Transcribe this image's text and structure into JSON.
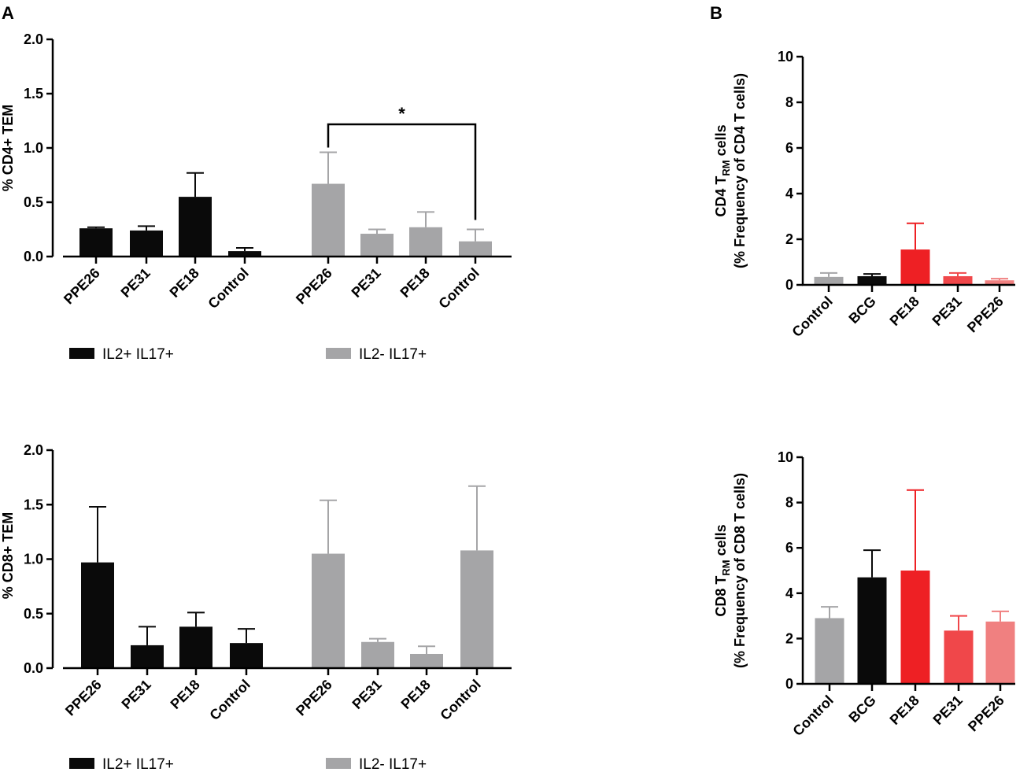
{
  "panels": {
    "a_label": "A",
    "b_label": "B"
  },
  "chart_data": [
    {
      "id": "cd4-tem",
      "type": "bar",
      "title": "",
      "xlabel": "",
      "ylabel": "% CD4+ TEM",
      "ylim": [
        0,
        2.0
      ],
      "yticks": [
        "0.0",
        "0.5",
        "1.0",
        "1.5",
        "2.0"
      ],
      "series": [
        {
          "name": "IL2+ IL17+",
          "color": "#0a0a0a",
          "categories": [
            "PPE26",
            "PE31",
            "PE18",
            "Control"
          ],
          "values": [
            0.26,
            0.24,
            0.55,
            0.05
          ],
          "errors": [
            0.01,
            0.04,
            0.22,
            0.03
          ]
        },
        {
          "name": "IL2- IL17+",
          "color": "#a5a5a7",
          "categories": [
            "PPE26",
            "PE31",
            "PE18",
            "Control"
          ],
          "values": [
            0.67,
            0.21,
            0.27,
            0.14
          ],
          "errors": [
            0.29,
            0.04,
            0.14,
            0.11
          ]
        }
      ],
      "significance": {
        "label": "*",
        "between": [
          "IL2- IL17+ PPE26",
          "IL2- IL17+ Control"
        ]
      },
      "legend": [
        {
          "label": "IL2+ IL17+",
          "color": "#0a0a0a"
        },
        {
          "label": "IL2- IL17+",
          "color": "#a5a5a7"
        }
      ]
    },
    {
      "id": "cd8-tem",
      "type": "bar",
      "title": "",
      "xlabel": "",
      "ylabel": "% CD8+ TEM",
      "ylim": [
        0,
        2.0
      ],
      "yticks": [
        "0.0",
        "0.5",
        "1.0",
        "1.5",
        "2.0"
      ],
      "series": [
        {
          "name": "IL2+ IL17+",
          "color": "#0a0a0a",
          "categories": [
            "PPE26",
            "PE31",
            "PE18",
            "Control"
          ],
          "values": [
            0.97,
            0.21,
            0.38,
            0.23
          ],
          "errors": [
            0.51,
            0.17,
            0.13,
            0.13
          ]
        },
        {
          "name": "IL2- IL17+",
          "color": "#a5a5a7",
          "categories": [
            "PPE26",
            "PE31",
            "PE18",
            "Control"
          ],
          "values": [
            1.05,
            0.24,
            0.13,
            1.08
          ],
          "errors": [
            0.49,
            0.03,
            0.07,
            0.59
          ]
        }
      ],
      "legend": [
        {
          "label": "IL2+ IL17+",
          "color": "#0a0a0a"
        },
        {
          "label": "IL2- IL17+",
          "color": "#a5a5a7"
        }
      ]
    },
    {
      "id": "cd4-trm",
      "type": "bar",
      "title": "",
      "xlabel": "",
      "ylabel_line1": "CD4 T",
      "ylabel_sub": "RM",
      "ylabel_line1_end": " cells",
      "ylabel_line2": "(% Frequency of CD4 T cells)",
      "ylim": [
        0,
        10
      ],
      "yticks": [
        "0",
        "2",
        "4",
        "6",
        "8",
        "10"
      ],
      "categories": [
        "Control",
        "BCG",
        "PE18",
        "PE31",
        "PPE26"
      ],
      "values": [
        0.35,
        0.38,
        1.55,
        0.38,
        0.2
      ],
      "errors": [
        0.17,
        0.1,
        1.15,
        0.14,
        0.07
      ],
      "colors": [
        "#a5a5a7",
        "#0a0a0a",
        "#ee2024",
        "#f0474a",
        "#f08080"
      ]
    },
    {
      "id": "cd8-trm",
      "type": "bar",
      "title": "",
      "xlabel": "",
      "ylabel_line1": "CD8 T",
      "ylabel_sub": "RM",
      "ylabel_line1_end": " cells",
      "ylabel_line2": "(% Frequency of CD8 T cells)",
      "ylim": [
        0,
        10
      ],
      "yticks": [
        "0",
        "2",
        "4",
        "6",
        "8",
        "10"
      ],
      "categories": [
        "Control",
        "BCG",
        "PE18",
        "PE31",
        "PPE26"
      ],
      "values": [
        2.9,
        4.7,
        5.0,
        2.35,
        2.75
      ],
      "errors": [
        0.5,
        1.2,
        3.55,
        0.65,
        0.45
      ],
      "colors": [
        "#a5a5a7",
        "#0a0a0a",
        "#ee2024",
        "#f0474a",
        "#f08080"
      ]
    }
  ]
}
